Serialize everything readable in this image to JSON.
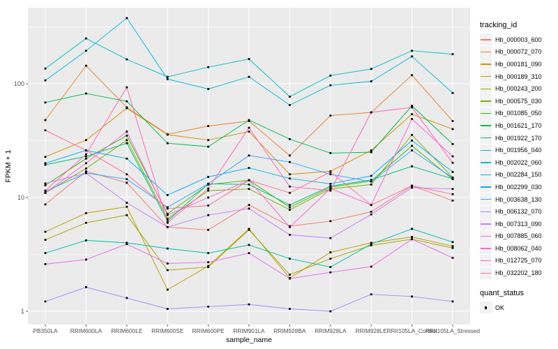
{
  "figure": {
    "background": "#FFFFFF",
    "panel_background": "#EBEBEB",
    "gridline_color": "#FFFFFF",
    "axis_text_color": "#4D4D4D",
    "axis_title_color": "#000000",
    "point_color": "#000000",
    "legend_key_background": "#F2F2F2"
  },
  "chart_data": {
    "type": "line",
    "title": "",
    "xlabel": "sample_name",
    "ylabel": "FPKM + 1",
    "y_scale": "log10",
    "y_ticks": [
      "1",
      "10",
      "100"
    ],
    "y_tick_values": [
      1,
      10,
      100
    ],
    "y_minor_values": [
      3.1623,
      31.623,
      316.23
    ],
    "ylim": [
      0.77,
      467
    ],
    "grid": true,
    "legend_position": "right",
    "marker": "black-square",
    "categories": [
      "PB350LA",
      "RRIM600LA",
      "RRIM600LE",
      "RRIM600SE",
      "RRIM600PE",
      "RRIM901LA",
      "RRIM928BA",
      "RRIM928LA",
      "RRIM928LE",
      "RRII105LA_Control",
      "RRII105LA_Stressed"
    ],
    "series": [
      {
        "name": "Hb_000003_600",
        "color": "#F8766D",
        "values": [
          8.7,
          17,
          13.5,
          5.5,
          5.2,
          8.6,
          5.6,
          6.2,
          7.5,
          12.7,
          9.4
        ]
      },
      {
        "name": "Hb_000072_070",
        "color": "#EA8331",
        "values": [
          48,
          144,
          62,
          36,
          42.5,
          47,
          23.4,
          52.5,
          56,
          119,
          47
        ]
      },
      {
        "name": "Hb_000181_090",
        "color": "#D89000",
        "values": [
          22.8,
          32,
          61,
          35.7,
          32,
          38,
          16,
          17,
          26,
          54,
          40
        ]
      },
      {
        "name": "Hb_000189_310",
        "color": "#C09B00",
        "values": [
          5.0,
          7.3,
          8.3,
          1.55,
          2.5,
          5.3,
          1.96,
          3.3,
          4.0,
          4.5,
          3.74
        ]
      },
      {
        "name": "Hb_000243_200",
        "color": "#A3A500",
        "values": [
          4.25,
          6.0,
          7.0,
          2.3,
          2.45,
          5.2,
          2.1,
          2.9,
          3.8,
          4.3,
          3.6
        ]
      },
      {
        "name": "Hb_000575_030",
        "color": "#7CAE00",
        "values": [
          11,
          18,
          32,
          6.5,
          11.5,
          11.9,
          7.8,
          11.9,
          13,
          35.5,
          15
        ]
      },
      {
        "name": "Hb_001085_050",
        "color": "#39B600",
        "values": [
          12.8,
          22,
          35,
          7.2,
          13,
          14.2,
          8.2,
          12.3,
          14,
          28.5,
          14.5
        ]
      },
      {
        "name": "Hb_001621_170",
        "color": "#00BB4E",
        "values": [
          68.5,
          82,
          70,
          30,
          28,
          48,
          32.6,
          24.6,
          25,
          64,
          29.5
        ]
      },
      {
        "name": "Hb_001922_170",
        "color": "#00BF7D",
        "values": [
          19.4,
          23,
          30,
          6.2,
          13.2,
          13,
          8.6,
          12.6,
          14.3,
          18.8,
          14.6
        ]
      },
      {
        "name": "Hb_001956_040",
        "color": "#00C1A3",
        "values": [
          3.25,
          4.2,
          4.0,
          3.56,
          3.25,
          3.83,
          2.9,
          2.45,
          3.9,
          5.3,
          4.06
        ]
      },
      {
        "name": "Hb_002022_060",
        "color": "#00BFC4",
        "values": [
          136,
          250,
          164,
          115,
          140,
          165,
          77,
          118,
          135,
          195,
          182
        ]
      },
      {
        "name": "Hb_002284_150",
        "color": "#00BAE0",
        "values": [
          107,
          195,
          378,
          110,
          90,
          115,
          65,
          97,
          105,
          174,
          83
        ]
      },
      {
        "name": "Hb_002299_030",
        "color": "#00B0F6",
        "values": [
          20,
          26,
          22,
          10.5,
          15.2,
          18.2,
          14.7,
          13.2,
          15.5,
          31.7,
          16.8
        ]
      },
      {
        "name": "Hb_003638_130",
        "color": "#35A2FF",
        "values": [
          11.3,
          16.4,
          14.5,
          8.2,
          13.2,
          23.4,
          20.5,
          16,
          13.8,
          26,
          14.9
        ]
      },
      {
        "name": "Hb_006132_070",
        "color": "#9590FF",
        "values": [
          1.22,
          1.63,
          1.31,
          1.05,
          1.1,
          1.15,
          1.05,
          1.0,
          1.41,
          1.35,
          1.22
        ]
      },
      {
        "name": "Hb_007313_090",
        "color": "#C77CFF",
        "values": [
          13.3,
          16.4,
          9.0,
          5.5,
          7.0,
          8.0,
          4.7,
          4.4,
          7.1,
          12.2,
          11.9
        ]
      },
      {
        "name": "Hb_007885_060",
        "color": "#E76BF3",
        "values": [
          2.6,
          2.85,
          3.9,
          2.63,
          2.7,
          3.25,
          1.94,
          2.2,
          2.47,
          4.3,
          2.95
        ]
      },
      {
        "name": "Hb_008062_040",
        "color": "#FA62DB",
        "values": [
          11,
          20,
          38,
          7,
          10,
          14.2,
          5.5,
          12,
          8.6,
          49,
          23
        ]
      },
      {
        "name": "Hb_012725_070",
        "color": "#FF62BC",
        "values": [
          11.5,
          24,
          93,
          6.0,
          12,
          41,
          12.5,
          11.5,
          56,
          62,
          20.2
        ]
      },
      {
        "name": "Hb_032202_180",
        "color": "#FF6A98",
        "values": [
          39,
          26,
          16,
          8,
          8.5,
          14.2,
          11,
          16.8,
          8.6,
          12.7,
          10.7
        ]
      }
    ],
    "legend": {
      "tracking_title": "tracking_id",
      "quant_title": "quant_status",
      "quant_items": [
        {
          "label": "OK"
        }
      ]
    }
  }
}
